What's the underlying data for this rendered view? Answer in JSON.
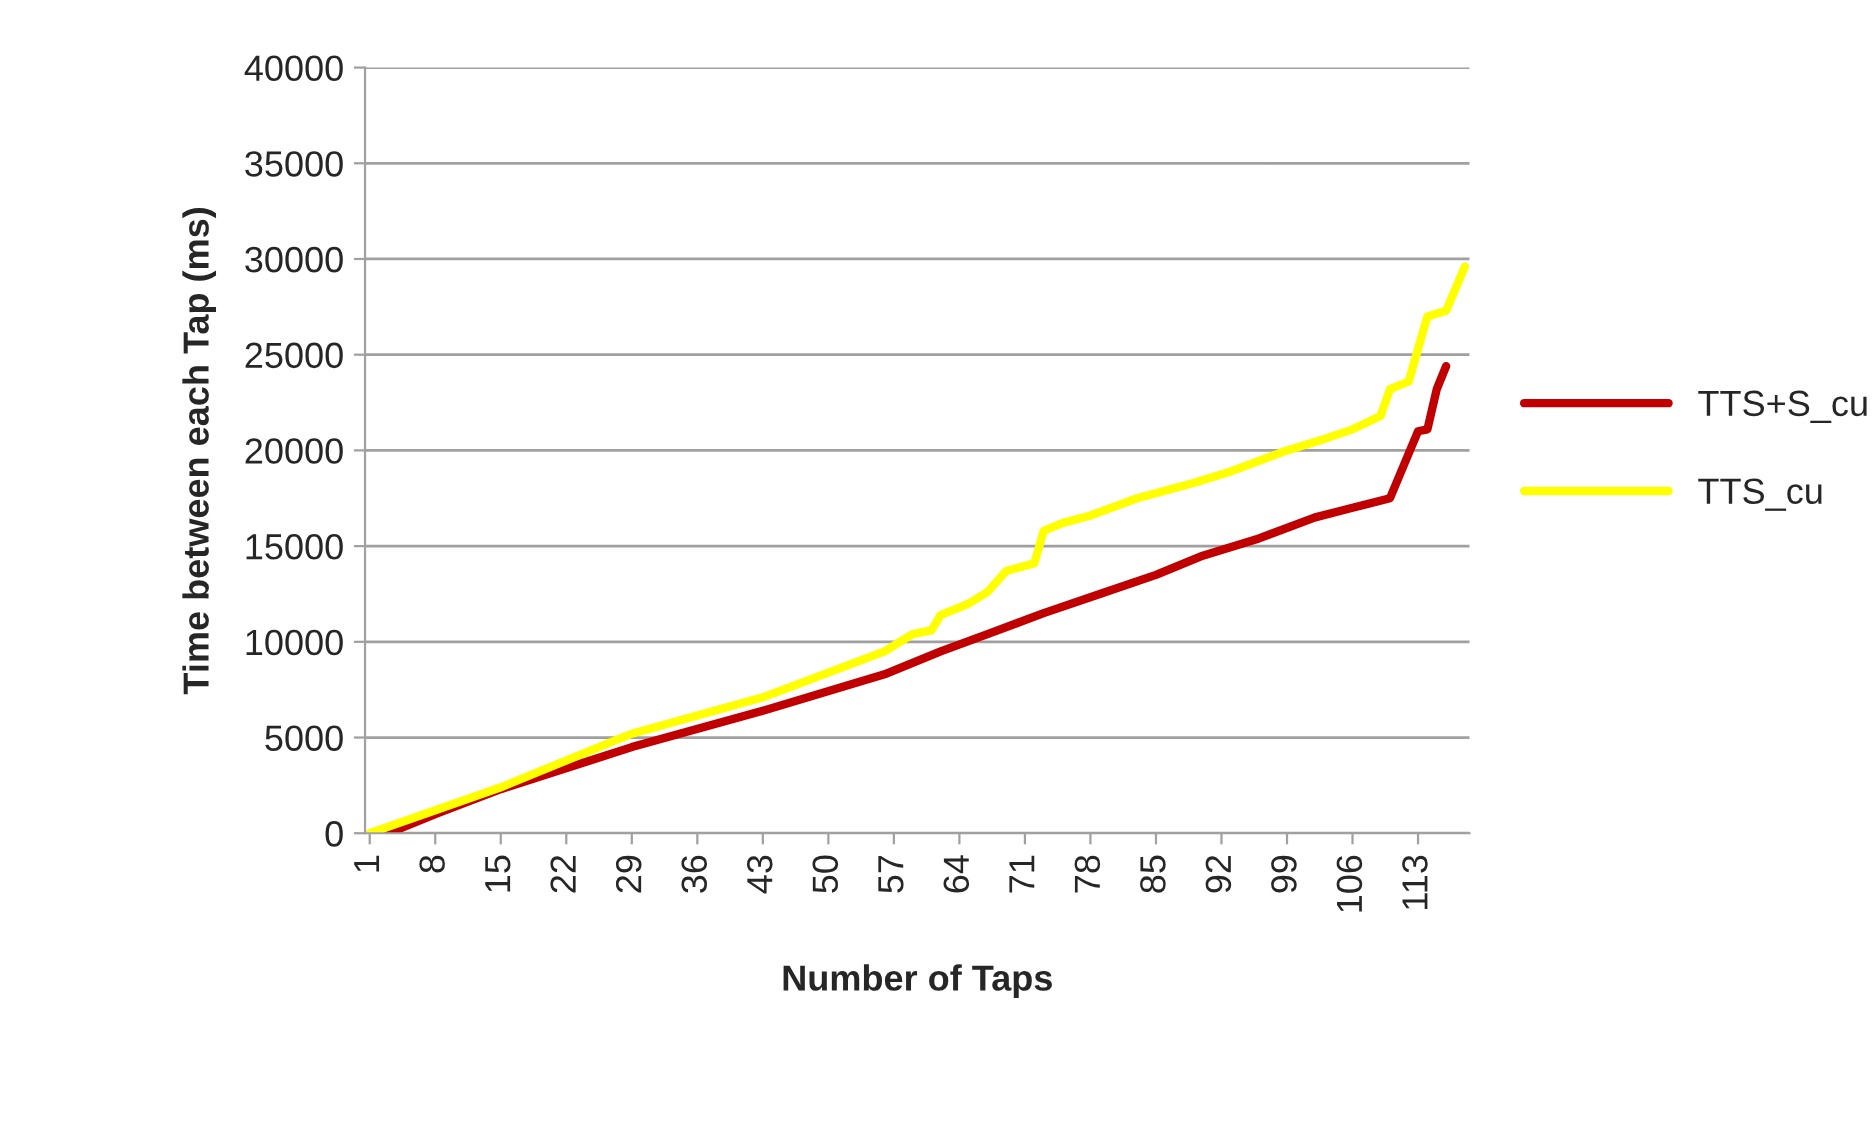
{
  "chart_data": {
    "type": "line",
    "xlabel": "Number of Taps",
    "ylabel": "Time between each Tap (ms)",
    "xlim": [
      0.5,
      118.5
    ],
    "xticks": [
      1,
      8,
      15,
      22,
      29,
      36,
      43,
      50,
      57,
      64,
      71,
      78,
      85,
      92,
      99,
      106,
      113
    ],
    "ylim": [
      0,
      40000
    ],
    "yticks": [
      0,
      5000,
      10000,
      15000,
      20000,
      25000,
      30000,
      35000,
      40000
    ],
    "grid": "y",
    "legend": "right",
    "marker": "none",
    "line_style": "solid",
    "series": [
      {
        "name": "TTS+S_cu",
        "color": "#c00000",
        "x": [
          3,
          8,
          15,
          29,
          43,
          56,
          62,
          67,
          73,
          79,
          85,
          90,
          96,
          102,
          106,
          110,
          113,
          114,
          115,
          116
        ],
        "values": [
          0,
          1000,
          2300,
          4500,
          6400,
          8300,
          9500,
          10400,
          11500,
          12500,
          13500,
          14500,
          15400,
          16500,
          17000,
          17500,
          21000,
          21100,
          23200,
          24400
        ]
      },
      {
        "name": "TTS_cu",
        "color": "#ffff00",
        "x": [
          1,
          8,
          15,
          29,
          43,
          56,
          59,
          61,
          62,
          65,
          67,
          69,
          72,
          73,
          75,
          78,
          83,
          89,
          93,
          99,
          103,
          106,
          109,
          110,
          112,
          114,
          116,
          118
        ],
        "values": [
          0,
          1200,
          2400,
          5200,
          7100,
          9500,
          10400,
          10600,
          11400,
          12000,
          12600,
          13700,
          14100,
          15800,
          16200,
          16600,
          17500,
          18300,
          18900,
          20000,
          20600,
          21100,
          21800,
          23200,
          23600,
          27000,
          27300,
          29600
        ]
      }
    ]
  }
}
